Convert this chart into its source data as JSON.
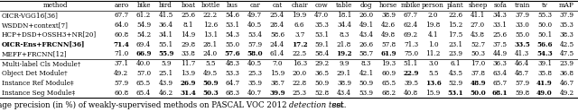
{
  "columns": [
    "method",
    "aero",
    "bike",
    "bird",
    "boat",
    "bottle",
    "bus",
    "car",
    "cat",
    "chair",
    "cow",
    "table",
    "dog",
    "horse",
    "mbike",
    "person",
    "plant",
    "sheep",
    "sofa",
    "train",
    "tv",
    "mAP"
  ],
  "rows": [
    [
      "OICR-VGG16[36]",
      "67.7",
      "61.2",
      "41.5",
      "25.6",
      "22.2",
      "54.6",
      "49.7",
      "25.4",
      "19.9",
      "47.0",
      "18.1",
      "26.0",
      "38.9",
      "67.7",
      "2.0",
      "22.6",
      "41.1",
      "34.3",
      "37.9",
      "55.3",
      "37.9"
    ],
    [
      "WSDDN+context[7]",
      "64.0",
      "54.9",
      "36.4",
      "8.1",
      "12.6",
      "53.1",
      "40.5",
      "28.4",
      "6.6",
      "35.3",
      "34.4",
      "49.1",
      "42.6",
      "62.4",
      "19.8",
      "15.2",
      "27.0",
      "33.1",
      "33.0",
      "50.0",
      "35.3"
    ],
    [
      "HCP+DSD+OSSH3+NR[20]",
      "60.8",
      "54.2",
      "34.1",
      "14.9",
      "13.1",
      "54.3",
      "53.4",
      "58.6",
      "3.7",
      "53.1",
      "8.3",
      "43.4",
      "49.8",
      "69.2",
      "4.1",
      "17.5",
      "43.8",
      "25.6",
      "55.0",
      "50.1",
      "38.3"
    ],
    [
      "OICR-Ens+FRCNN[36]",
      "71.4",
      "69.4",
      "55.1",
      "29.8",
      "28.1",
      "55.0",
      "57.9",
      "24.4",
      "17.2",
      "59.1",
      "21.8",
      "26.6",
      "57.8",
      "71.3",
      "1.0",
      "23.1",
      "52.7",
      "37.5",
      "33.5",
      "56.6",
      "42.5"
    ],
    [
      "MEFF+FRCNN[12]",
      "71.0",
      "66.9",
      "55.9",
      "33.8",
      "24.0",
      "57.6",
      "58.0",
      "61.4",
      "22.5",
      "58.4",
      "19.2",
      "58.7",
      "61.9",
      "75.0",
      "11.2",
      "23.9",
      "50.3",
      "44.9",
      "41.3",
      "54.3",
      "47.5"
    ]
  ],
  "rows2": [
    [
      "Multi-label Cls Module†",
      "37.1",
      "40.0",
      "5.9",
      "11.7",
      "5.5",
      "48.3",
      "40.5",
      "7.0",
      "16.3",
      "29.2",
      "9.9",
      "8.3",
      "19.3",
      "51.1",
      "3.0",
      "6.1",
      "17.0",
      "36.3",
      "46.4",
      "39.1",
      "23.9"
    ],
    [
      "Object Det Module†",
      "49.2",
      "57.0",
      "25.1",
      "13.9",
      "49.5",
      "53.3",
      "25.3",
      "15.9",
      "20.0",
      "36.5",
      "29.1",
      "42.1",
      "60.9",
      "22.9",
      "5.5",
      "43.5",
      "37.8",
      "63.4",
      "48.7",
      "35.8",
      "36.8"
    ],
    [
      "Instance Ref Module‡",
      "57.9",
      "65.5",
      "43.9",
      "26.9",
      "50.9",
      "64.7",
      "35.9",
      "38.7",
      "22.8",
      "50.9",
      "38.9",
      "50.9",
      "65.5",
      "39.5",
      "13.6",
      "52.9",
      "48.9",
      "65.7",
      "57.9",
      "41.9",
      "46.7"
    ],
    [
      "Instance Seg Module‡",
      "60.8",
      "65.4",
      "46.2",
      "31.4",
      "50.3",
      "68.3",
      "40.7",
      "39.9",
      "25.3",
      "52.8",
      "43.4",
      "53.9",
      "68.2",
      "40.8",
      "15.9",
      "53.1",
      "50.0",
      "68.1",
      "59.8",
      "49.0",
      "49.2"
    ]
  ],
  "bold_row3": [
    0,
    1,
    9,
    19,
    20
  ],
  "bold_row4": [
    2,
    3,
    6,
    7,
    11,
    13,
    20
  ],
  "bold_row6": [
    14
  ],
  "bold_row8": [
    4,
    5,
    15,
    17,
    20
  ],
  "bold_row9": [
    4,
    5,
    8,
    16,
    17,
    18,
    20
  ],
  "bg_color": "#ffffff",
  "font_size": 5.2,
  "caption_font_size": 6.2
}
